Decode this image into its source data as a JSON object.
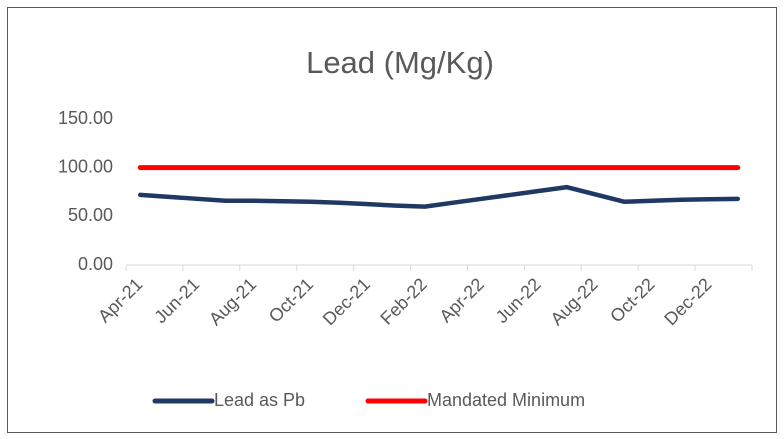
{
  "chart_data": {
    "type": "line",
    "title": "Lead (Mg/Kg)",
    "categories": [
      "Apr-21",
      null,
      "Jun-21",
      null,
      "Aug-21",
      null,
      "Oct-21",
      null,
      "Dec-21",
      null,
      "Feb-22",
      null,
      "Apr-22",
      null,
      "Jun-22",
      null,
      "Aug-22",
      null,
      "Oct-22",
      null,
      "Dec-22",
      null
    ],
    "series": [
      {
        "name": "Lead as Pb",
        "color": "#1f3864",
        "values": [
          72,
          70,
          68,
          66,
          66,
          65.5,
          65,
          64,
          62.5,
          61,
          60,
          64,
          68,
          72,
          76,
          80,
          72.5,
          65,
          66,
          67,
          67.5,
          68
        ]
      },
      {
        "name": "Mandated Minimum",
        "color": "#ff0000",
        "values": [
          100,
          100,
          100,
          100,
          100,
          100,
          100,
          100,
          100,
          100,
          100,
          100,
          100,
          100,
          100,
          100,
          100,
          100,
          100,
          100,
          100,
          100
        ]
      }
    ],
    "ylim": [
      0,
      150
    ],
    "yticks": [
      {
        "value": 0,
        "label": "0.00"
      },
      {
        "value": 50,
        "label": "50.00"
      },
      {
        "value": 100,
        "label": "100.00"
      },
      {
        "value": 150,
        "label": "150.00"
      }
    ],
    "grid": false,
    "legend": "bottom"
  }
}
